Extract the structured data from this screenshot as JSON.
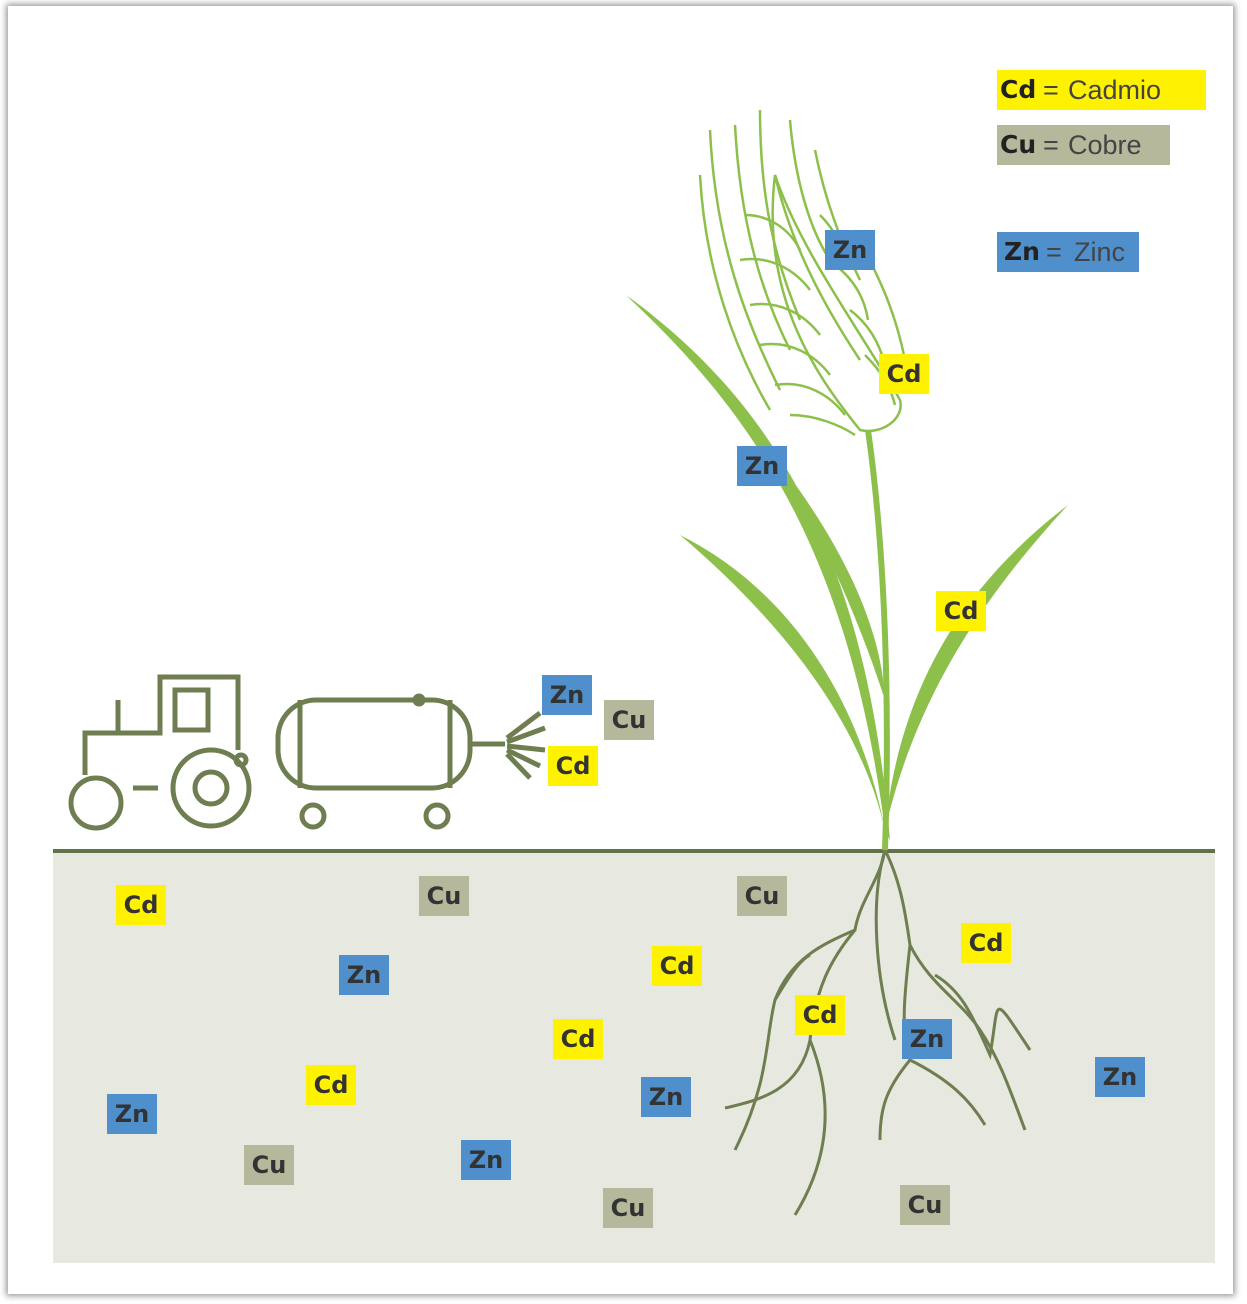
{
  "legend": [
    {
      "symbol": "Cd",
      "equals": "=",
      "name": "Cadmio"
    },
    {
      "symbol": "Cu",
      "equals": "=",
      "name": "Cobre"
    },
    {
      "symbol": "Zn",
      "equals": "=",
      "name": "Zinc"
    }
  ],
  "tags": [
    "Zn",
    "Cu",
    "Cd",
    "Zn",
    "Cd",
    "Zn",
    "Cd",
    "Cd",
    "Cu",
    "Cu",
    "Cd",
    "Zn",
    "Cd",
    "Cd",
    "Cd",
    "Zn",
    "Zn",
    "Cd",
    "Zn",
    "Zn",
    "Zn",
    "Cu",
    "Cu",
    "Cu"
  ]
}
